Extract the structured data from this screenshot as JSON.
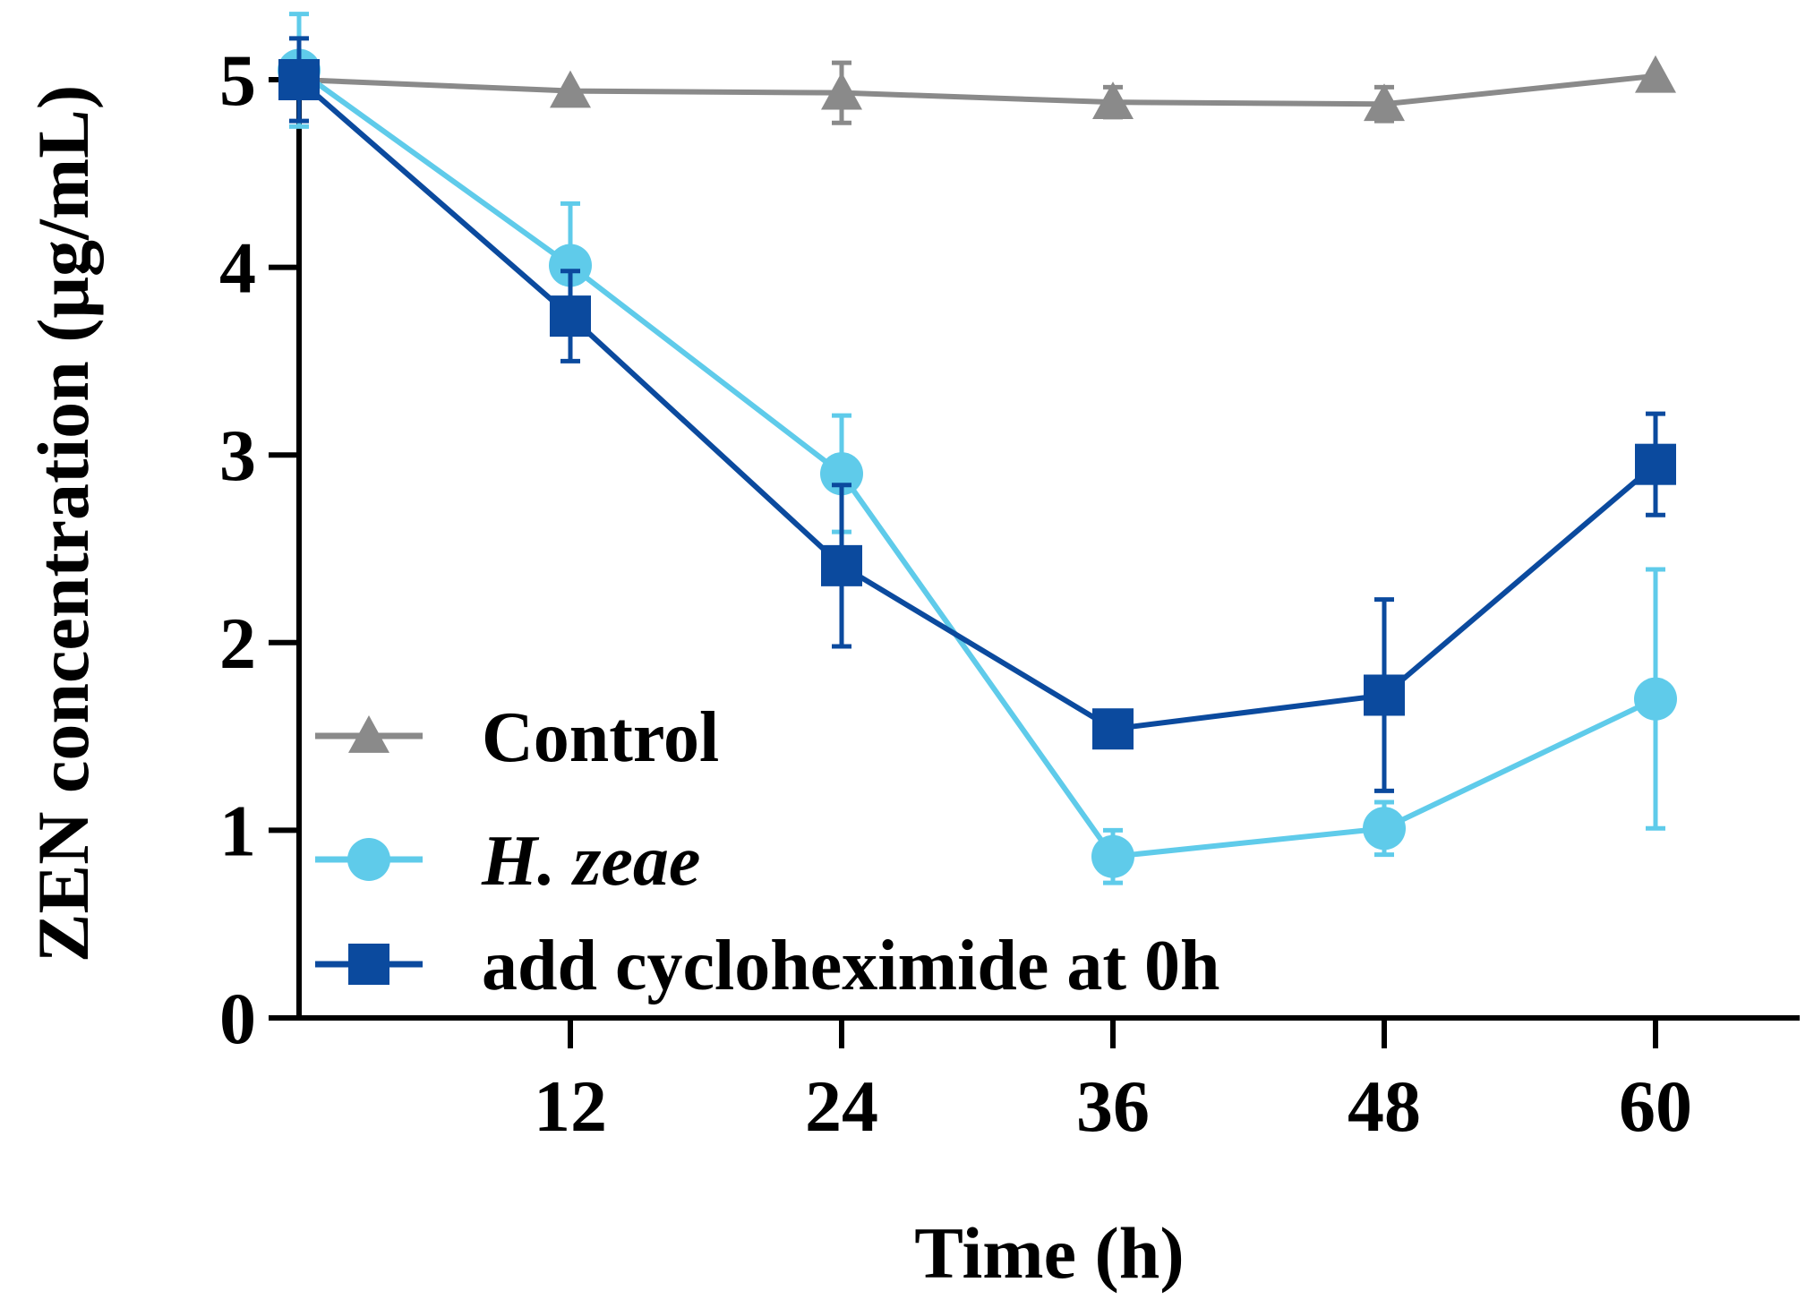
{
  "chart_data": {
    "type": "line",
    "title": "",
    "xlabel": "Time (h)",
    "ylabel": "ZEN concentration (μg/mL)",
    "xlim": [
      0,
      69
    ],
    "ylim": [
      0,
      5.3
    ],
    "x_ticks": [
      12,
      24,
      36,
      48,
      60
    ],
    "x_tick_labels": [
      "12",
      "24",
      "36",
      "48",
      "60"
    ],
    "y_ticks": [
      0,
      1,
      2,
      3,
      4,
      5
    ],
    "y_tick_labels": [
      "0",
      "1",
      "2",
      "3",
      "4",
      "5"
    ],
    "legend_position": "lower-left",
    "grid": false,
    "x": [
      0,
      12,
      24,
      36,
      48,
      60
    ],
    "series": [
      {
        "name": "Control",
        "italic": false,
        "marker": "triangle",
        "color": "#8a8a8a",
        "values": [
          5.0,
          4.94,
          4.93,
          4.88,
          4.87,
          5.02
        ],
        "errors": [
          0.0,
          0.0,
          0.16,
          0.08,
          0.09,
          0.0
        ]
      },
      {
        "name": "H. zeae",
        "italic": true,
        "marker": "circle",
        "color": "#5fcbea",
        "values": [
          5.05,
          4.01,
          2.9,
          0.86,
          1.01,
          1.7
        ],
        "errors": [
          0.3,
          0.33,
          0.31,
          0.14,
          0.14,
          0.69
        ]
      },
      {
        "name": "add cycloheximide at 0h",
        "italic": false,
        "marker": "square",
        "color": "#0b4a9e",
        "values": [
          5.0,
          3.74,
          2.41,
          1.54,
          1.72,
          2.95
        ],
        "errors": [
          0.22,
          0.24,
          0.43,
          0.0,
          0.51,
          0.27
        ]
      }
    ]
  }
}
